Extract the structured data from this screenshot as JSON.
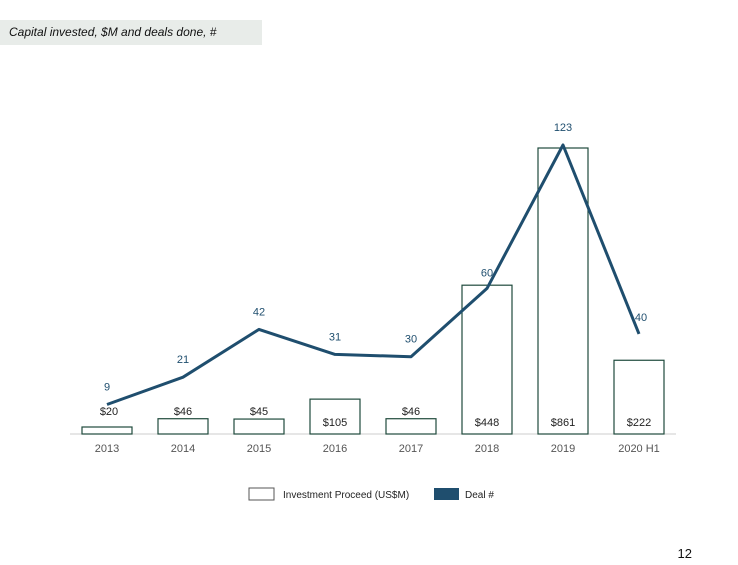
{
  "header": {
    "title": "Capital invested, $M and deals done, #"
  },
  "page_number": "12",
  "colors": {
    "bar_stroke": "#1f4a3c",
    "line": "#1f4e6e",
    "deal_label": "#1f4e6e",
    "axis": "#cccccc",
    "tick_label": "#555555"
  },
  "chart_data": {
    "type": "bar",
    "title": "Capital invested, $M and deals done, #",
    "categories": [
      "2013",
      "2014",
      "2015",
      "2016",
      "2017",
      "2018",
      "2019",
      "2020 H1"
    ],
    "series": [
      {
        "name": "Investment Proceed (US$M)",
        "type": "bar",
        "values": [
          20,
          46,
          45,
          105,
          46,
          448,
          861,
          222
        ],
        "labels": [
          "$20",
          "$46",
          "$45",
          "$105",
          "$46",
          "$448",
          "$861",
          "$222"
        ]
      },
      {
        "name": "Deal #",
        "type": "line",
        "values": [
          9,
          21,
          42,
          31,
          30,
          60,
          123,
          40
        ],
        "labels": [
          "9",
          "21",
          "42",
          "31",
          "30",
          "60",
          "123",
          "40"
        ]
      }
    ],
    "legend": {
      "position": "bottom",
      "items": [
        "Investment Proceed (US$M)",
        "Deal #"
      ]
    },
    "grid": false
  }
}
